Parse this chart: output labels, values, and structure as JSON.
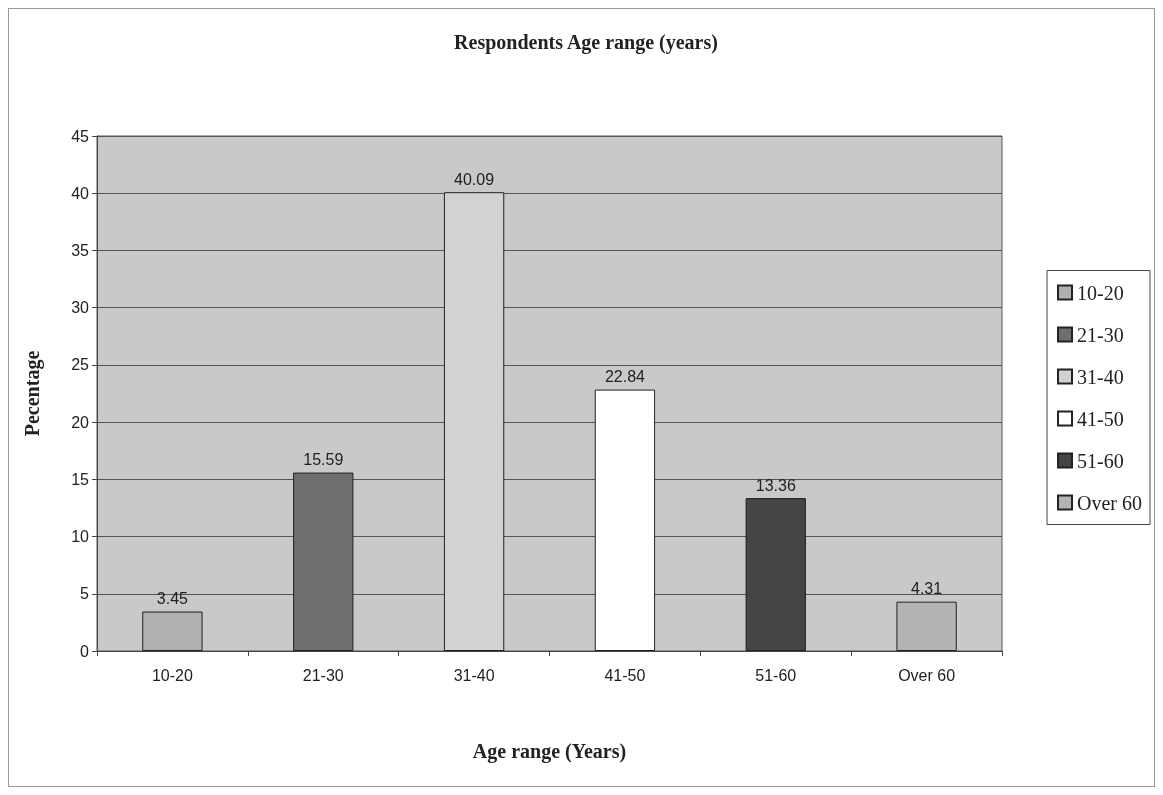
{
  "chart_data": {
    "type": "bar",
    "title": "Respondents Age range (years)",
    "xlabel": "Age range (Years)",
    "ylabel": "Pecentage",
    "categories": [
      "10-20",
      "21-30",
      "31-40",
      "41-50",
      "51-60",
      "Over 60"
    ],
    "series": [
      {
        "name": "10-20",
        "color": "#b0b0b0",
        "values": [
          3.45,
          null,
          null,
          null,
          null,
          null
        ]
      },
      {
        "name": "21-30",
        "color": "#6e6e6e",
        "values": [
          null,
          15.59,
          null,
          null,
          null,
          null
        ]
      },
      {
        "name": "31-40",
        "color": "#d2d2d2",
        "values": [
          null,
          null,
          40.09,
          null,
          null,
          null
        ]
      },
      {
        "name": "41-50",
        "color": "#ffffff",
        "values": [
          null,
          null,
          null,
          22.84,
          null,
          null
        ]
      },
      {
        "name": "51-60",
        "color": "#454545",
        "values": [
          null,
          null,
          null,
          null,
          13.36,
          null
        ]
      },
      {
        "name": "Over 60",
        "color": "#b4b4b4",
        "values": [
          null,
          null,
          null,
          null,
          null,
          4.31
        ]
      }
    ],
    "ylim": [
      0,
      45
    ],
    "yticks": [
      0,
      5,
      10,
      15,
      20,
      25,
      30,
      35,
      40,
      45
    ],
    "grid": "y",
    "legend": "right",
    "data_labels": true
  }
}
